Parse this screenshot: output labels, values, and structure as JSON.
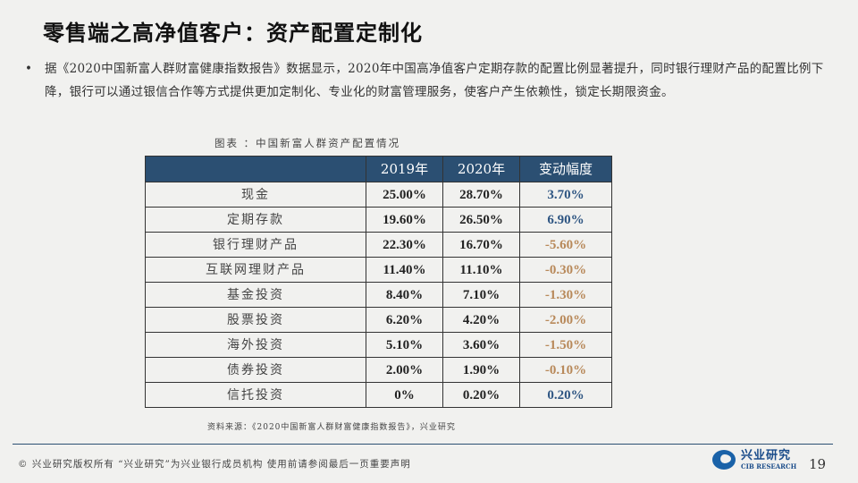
{
  "title": "零售端之高净值客户：资产配置定制化",
  "bullet": "据《2020中国新富人群财富健康指数报告》数据显示，2020年中国高净值客户定期存款的配置比例显著提升，同时银行理财产品的配置比例下降，银行可以通过银信合作等方式提供更加定制化、专业化的财富管理服务，使客户产生依赖性，锁定长期限资金。",
  "bullet_symbol": "•",
  "caption": "图表 ：中国新富人群资产配置情况",
  "table": {
    "headers": [
      "",
      "2019年",
      "2020年",
      "变动幅度"
    ],
    "rows": [
      {
        "label": "现金",
        "y2019": "25.00%",
        "y2020": "28.70%",
        "change": "3.70%",
        "dir": "pos"
      },
      {
        "label": "定期存款",
        "y2019": "19.60%",
        "y2020": "26.50%",
        "change": "6.90%",
        "dir": "pos"
      },
      {
        "label": "银行理财产品",
        "y2019": "22.30%",
        "y2020": "16.70%",
        "change": "-5.60%",
        "dir": "neg"
      },
      {
        "label": "互联网理财产品",
        "y2019": "11.40%",
        "y2020": "11.10%",
        "change": "-0.30%",
        "dir": "neg"
      },
      {
        "label": "基金投资",
        "y2019": "8.40%",
        "y2020": "7.10%",
        "change": "-1.30%",
        "dir": "neg"
      },
      {
        "label": "股票投资",
        "y2019": "6.20%",
        "y2020": "4.20%",
        "change": "-2.00%",
        "dir": "neg"
      },
      {
        "label": "海外投资",
        "y2019": "5.10%",
        "y2020": "3.60%",
        "change": "-1.50%",
        "dir": "neg"
      },
      {
        "label": "债券投资",
        "y2019": "2.00%",
        "y2020": "1.90%",
        "change": "-0.10%",
        "dir": "neg"
      },
      {
        "label": "信托投资",
        "y2019": "0%",
        "y2020": "0.20%",
        "change": "0.20%",
        "dir": "pos"
      }
    ]
  },
  "source": "资料来源：《2020中国新富人群财富健康指数报告》，兴业研究",
  "footer": "©  兴业研究版权所有    “兴业研究”为兴业银行成员机构    使用前请参阅最后一页重要声明",
  "logo": {
    "cn": "兴业研究",
    "en": "CIB RESEARCH"
  },
  "page_number": "19",
  "colors": {
    "header_bg": "#2b4f72",
    "positive": "#2e5582",
    "negative": "#b8895a"
  }
}
